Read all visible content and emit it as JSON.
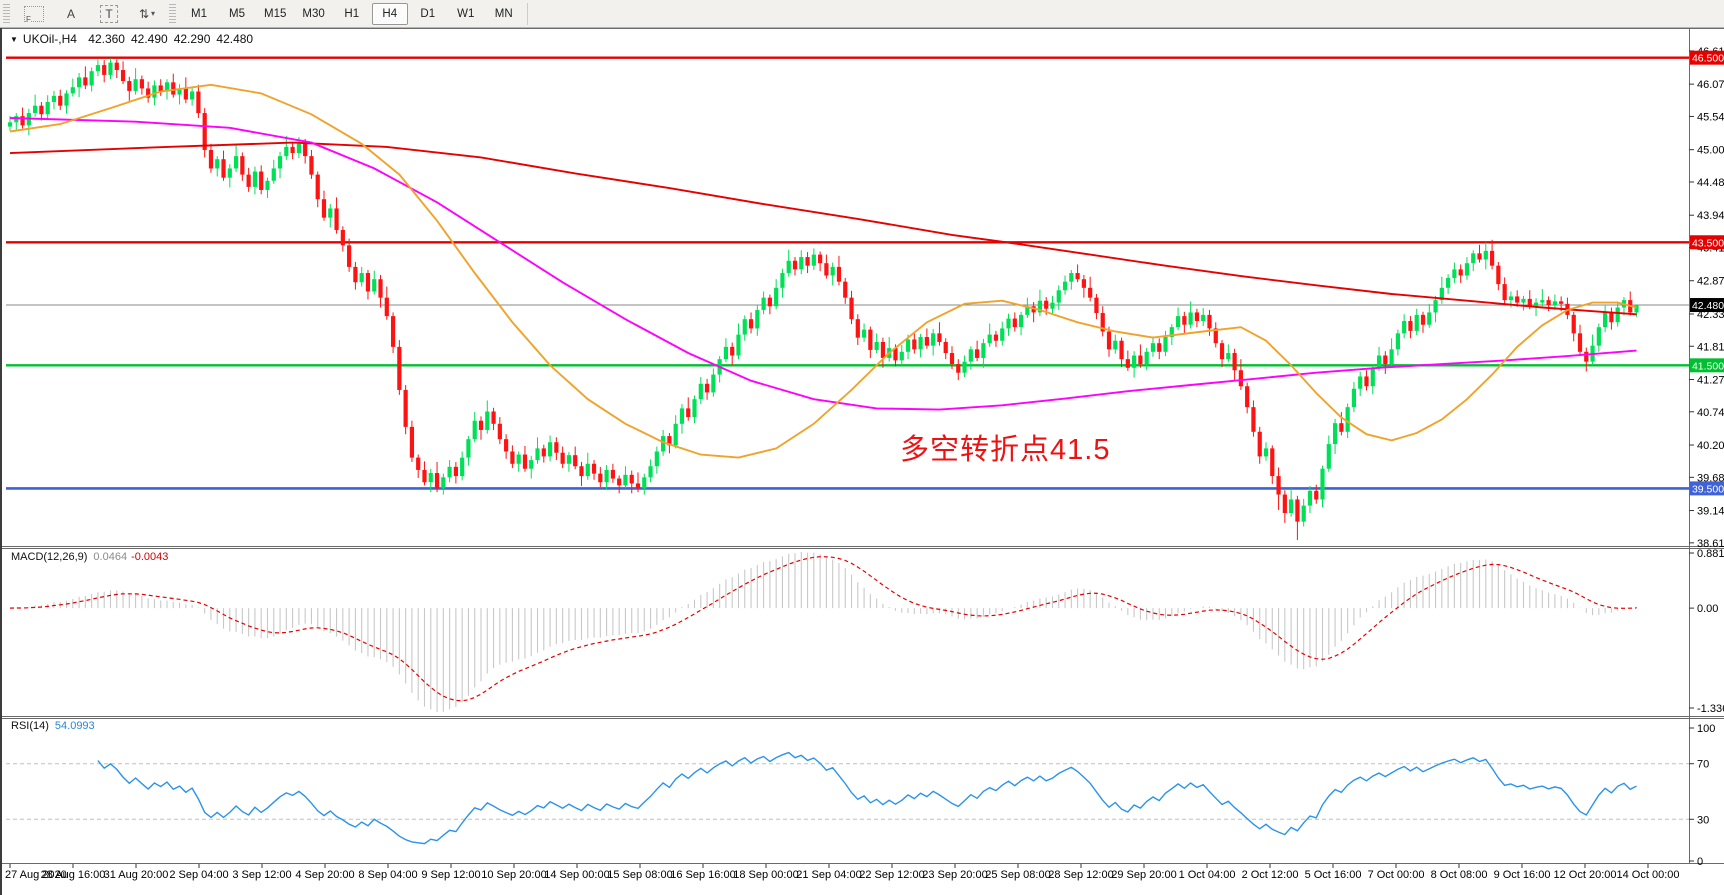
{
  "toolbar": {
    "tool_icons": [
      {
        "name": "indicator-frame-icon",
        "glyph": "F"
      },
      {
        "name": "text-label-icon",
        "glyph": "A"
      },
      {
        "name": "text-box-icon",
        "glyph": "T"
      },
      {
        "name": "arrange-arrows-icon",
        "glyph": "⇅",
        "caret": "▾"
      }
    ],
    "timeframes": [
      "M1",
      "M5",
      "M15",
      "M30",
      "H1",
      "H4",
      "D1",
      "W1",
      "MN"
    ],
    "selected_timeframe": "H4"
  },
  "chart": {
    "title": {
      "symbol": "UKOil-,H4",
      "open": "42.360",
      "high": "42.490",
      "low": "42.290",
      "close": "42.480"
    },
    "annotation": {
      "text": "多空转折点41.5",
      "color": "#ee1111"
    }
  },
  "macd_panel": {
    "label": "MACD(12,26,9)",
    "value_main": "0.0464",
    "value_signal": "-0.0043"
  },
  "rsi_panel": {
    "label": "RSI(14)",
    "value": "54.0993"
  },
  "colors": {
    "candle_up": "#00e057",
    "candle_down": "#ff1212",
    "ma_slow": "#e60000",
    "ma_mid": "#ff00ff",
    "ma_fast": "#f0a32a",
    "macd_hist": "#c8c8c8",
    "macd_signal": "#e60000",
    "rsi_line": "#2a93ea",
    "level_dashed": "#c0c0c0",
    "panel_border": "#6a6a6a",
    "current_price_line": "#8a8a8a"
  },
  "chart_data": {
    "type": "candlestick",
    "title": "UKOil-,H4",
    "timeframe": "H4",
    "ylim": [
      38.58,
      46.95
    ],
    "price_ticks": [
      "46.610",
      "46.070",
      "45.545",
      "45.005",
      "44.480",
      "43.940",
      "43.415",
      "42.875",
      "42.335",
      "41.810",
      "41.270",
      "40.745",
      "40.205",
      "39.680",
      "39.140",
      "38.615"
    ],
    "x_labels": [
      "27 Aug 2020",
      "28 Aug 16:00",
      "31 Aug 20:00",
      "2 Sep 04:00",
      "3 Sep 12:00",
      "4 Sep 20:00",
      "8 Sep 04:00",
      "9 Sep 12:00",
      "10 Sep 20:00",
      "14 Sep 00:00",
      "15 Sep 08:00",
      "16 Sep 16:00",
      "18 Sep 00:00",
      "21 Sep 04:00",
      "22 Sep 12:00",
      "23 Sep 20:00",
      "25 Sep 08:00",
      "28 Sep 12:00",
      "29 Sep 20:00",
      "1 Oct 04:00",
      "2 Oct 12:00",
      "5 Oct 16:00",
      "7 Oct 00:00",
      "8 Oct 08:00",
      "9 Oct 16:00",
      "12 Oct 20:00",
      "14 Oct 00:00"
    ],
    "bars_per_label": 10,
    "hlines": [
      {
        "price": 46.5,
        "label": "46.500",
        "color": "#e60000",
        "width": 2.4
      },
      {
        "price": 43.5,
        "label": "43.500",
        "color": "#e60000",
        "width": 2.4
      },
      {
        "price": 42.48,
        "label": "42.480",
        "color": "#8a8a8a",
        "width": 1,
        "badge_bg": "#000000"
      },
      {
        "price": 41.5,
        "label": "41.500",
        "color": "#00c032",
        "width": 2.4
      },
      {
        "price": 39.5,
        "label": "39.500",
        "color": "#3f62d8",
        "width": 2.6
      }
    ],
    "candles": {
      "first_open": 45.38,
      "closes": [
        45.45,
        45.55,
        45.4,
        45.6,
        45.72,
        45.58,
        45.78,
        45.88,
        45.72,
        45.92,
        46.02,
        46.18,
        46.05,
        46.28,
        46.38,
        46.22,
        46.42,
        46.3,
        46.12,
        45.96,
        46.15,
        46.0,
        45.85,
        46.05,
        45.95,
        46.1,
        45.9,
        46.0,
        45.82,
        45.95,
        45.6,
        45.0,
        44.7,
        44.85,
        44.55,
        44.7,
        44.9,
        44.6,
        44.4,
        44.65,
        44.35,
        44.5,
        44.7,
        44.9,
        45.05,
        44.95,
        45.1,
        44.9,
        44.6,
        44.2,
        43.9,
        44.05,
        43.7,
        43.45,
        43.1,
        42.85,
        43.0,
        42.7,
        42.9,
        42.6,
        42.3,
        41.8,
        41.1,
        40.5,
        40.0,
        39.8,
        39.6,
        39.75,
        39.5,
        39.68,
        39.85,
        39.7,
        40.0,
        40.3,
        40.6,
        40.45,
        40.75,
        40.55,
        40.3,
        40.1,
        39.9,
        40.05,
        39.82,
        39.96,
        40.15,
        40.02,
        40.25,
        40.08,
        39.9,
        40.04,
        39.86,
        39.7,
        39.9,
        39.74,
        39.6,
        39.8,
        39.66,
        39.55,
        39.72,
        39.58,
        39.5,
        39.68,
        39.86,
        40.1,
        40.35,
        40.2,
        40.55,
        40.8,
        40.66,
        40.95,
        41.2,
        41.06,
        41.35,
        41.6,
        41.8,
        41.66,
        42.0,
        42.25,
        42.1,
        42.4,
        42.6,
        42.46,
        42.76,
        43.0,
        43.2,
        43.06,
        43.26,
        43.12,
        43.3,
        43.16,
        42.96,
        43.1,
        42.86,
        42.6,
        42.25,
        41.95,
        42.08,
        41.75,
        41.88,
        41.62,
        41.78,
        41.58,
        41.72,
        41.92,
        41.76,
        41.96,
        41.82,
        42.02,
        41.88,
        41.7,
        41.52,
        41.38,
        41.56,
        41.76,
        41.62,
        41.86,
        42.0,
        41.9,
        42.1,
        42.26,
        42.12,
        42.32,
        42.46,
        42.36,
        42.55,
        42.42,
        42.52,
        42.72,
        42.86,
        43.0,
        42.9,
        42.76,
        42.6,
        42.35,
        42.05,
        41.76,
        41.9,
        41.6,
        41.46,
        41.66,
        41.52,
        41.72,
        41.86,
        41.72,
        41.96,
        42.12,
        42.3,
        42.16,
        42.36,
        42.22,
        42.32,
        42.1,
        41.86,
        41.6,
        41.7,
        41.42,
        41.16,
        40.82,
        40.42,
        40.02,
        40.15,
        39.7,
        39.4,
        39.1,
        39.32,
        38.96,
        39.22,
        39.46,
        39.32,
        39.82,
        40.22,
        40.56,
        40.42,
        40.82,
        41.12,
        41.32,
        41.16,
        41.46,
        41.66,
        41.52,
        41.76,
        42.02,
        42.22,
        42.06,
        42.32,
        42.16,
        42.36,
        42.56,
        42.76,
        42.92,
        43.06,
        42.96,
        43.16,
        43.32,
        43.22,
        43.36,
        43.12,
        42.82,
        42.56,
        42.62,
        42.52,
        42.58,
        42.46,
        42.52,
        42.56,
        42.48,
        42.54,
        42.5,
        42.32,
        42.02,
        41.72,
        41.56,
        41.82,
        42.12,
        42.36,
        42.2,
        42.44,
        42.56,
        42.36,
        42.48
      ],
      "wick_up_cycle": [
        0.1,
        0.05,
        0.14,
        0.07,
        0.18,
        0.06,
        0.11,
        0.08
      ],
      "wick_dn_cycle": [
        0.07,
        0.13,
        0.05,
        0.16,
        0.06,
        0.1,
        0.08,
        0.12
      ],
      "overrides": {
        "14": {
          "h": 46.47
        },
        "16": {
          "h": 46.49
        },
        "202": {
          "l": 39.15
        },
        "205": {
          "l": 38.66
        },
        "235": {
          "h": 43.5
        },
        "259": {
          "o": 42.36,
          "h": 42.49,
          "l": 42.29,
          "c": 42.48
        }
      }
    },
    "moving_averages": [
      {
        "name": "ma-slow-red",
        "color": "#e60000",
        "points": [
          [
            0,
            44.95
          ],
          [
            25,
            45.05
          ],
          [
            45,
            45.12
          ],
          [
            60,
            45.05
          ],
          [
            75,
            44.88
          ],
          [
            90,
            44.62
          ],
          [
            105,
            44.38
          ],
          [
            120,
            44.12
          ],
          [
            135,
            43.88
          ],
          [
            150,
            43.62
          ],
          [
            160,
            43.48
          ],
          [
            172,
            43.3
          ],
          [
            184,
            43.12
          ],
          [
            196,
            42.95
          ],
          [
            208,
            42.8
          ],
          [
            220,
            42.66
          ],
          [
            232,
            42.55
          ],
          [
            244,
            42.44
          ],
          [
            252,
            42.38
          ],
          [
            259,
            42.33
          ]
        ]
      },
      {
        "name": "ma-mid-magenta",
        "color": "#ff00ff",
        "points": [
          [
            0,
            45.52
          ],
          [
            20,
            45.46
          ],
          [
            35,
            45.36
          ],
          [
            48,
            45.12
          ],
          [
            58,
            44.7
          ],
          [
            68,
            44.15
          ],
          [
            78,
            43.5
          ],
          [
            88,
            42.85
          ],
          [
            98,
            42.25
          ],
          [
            108,
            41.7
          ],
          [
            118,
            41.25
          ],
          [
            128,
            40.95
          ],
          [
            138,
            40.8
          ],
          [
            148,
            40.78
          ],
          [
            158,
            40.85
          ],
          [
            168,
            40.96
          ],
          [
            178,
            41.08
          ],
          [
            188,
            41.18
          ],
          [
            198,
            41.28
          ],
          [
            208,
            41.38
          ],
          [
            218,
            41.46
          ],
          [
            228,
            41.52
          ],
          [
            238,
            41.58
          ],
          [
            248,
            41.65
          ],
          [
            259,
            41.74
          ]
        ]
      },
      {
        "name": "ma-fast-orange",
        "color": "#f0a32a",
        "points": [
          [
            0,
            45.3
          ],
          [
            8,
            45.42
          ],
          [
            16,
            45.68
          ],
          [
            24,
            45.95
          ],
          [
            32,
            46.06
          ],
          [
            40,
            45.92
          ],
          [
            48,
            45.58
          ],
          [
            56,
            45.1
          ],
          [
            62,
            44.6
          ],
          [
            68,
            43.85
          ],
          [
            74,
            43.0
          ],
          [
            80,
            42.2
          ],
          [
            86,
            41.5
          ],
          [
            92,
            40.95
          ],
          [
            98,
            40.55
          ],
          [
            104,
            40.25
          ],
          [
            110,
            40.05
          ],
          [
            116,
            40.0
          ],
          [
            122,
            40.15
          ],
          [
            128,
            40.55
          ],
          [
            134,
            41.1
          ],
          [
            140,
            41.7
          ],
          [
            146,
            42.2
          ],
          [
            152,
            42.5
          ],
          [
            158,
            42.55
          ],
          [
            164,
            42.4
          ],
          [
            170,
            42.2
          ],
          [
            176,
            42.05
          ],
          [
            182,
            41.95
          ],
          [
            190,
            42.05
          ],
          [
            196,
            42.12
          ],
          [
            200,
            41.9
          ],
          [
            204,
            41.5
          ],
          [
            208,
            41.05
          ],
          [
            212,
            40.65
          ],
          [
            216,
            40.38
          ],
          [
            220,
            40.28
          ],
          [
            224,
            40.4
          ],
          [
            228,
            40.62
          ],
          [
            232,
            40.95
          ],
          [
            236,
            41.35
          ],
          [
            240,
            41.8
          ],
          [
            244,
            42.15
          ],
          [
            248,
            42.4
          ],
          [
            252,
            42.52
          ],
          [
            256,
            42.52
          ],
          [
            259,
            42.44
          ]
        ]
      }
    ],
    "macd": {
      "fast": 12,
      "slow": 26,
      "signal": 9,
      "last": 0.0464,
      "last_signal": -0.0043,
      "axis_ticks": [
        "0.8812",
        "0.00",
        "-1.3368"
      ]
    },
    "rsi": {
      "period": 14,
      "last": 54.0993,
      "levels": [
        70,
        30
      ],
      "axis_ticks": [
        "100",
        "70",
        "30",
        "0"
      ]
    }
  }
}
